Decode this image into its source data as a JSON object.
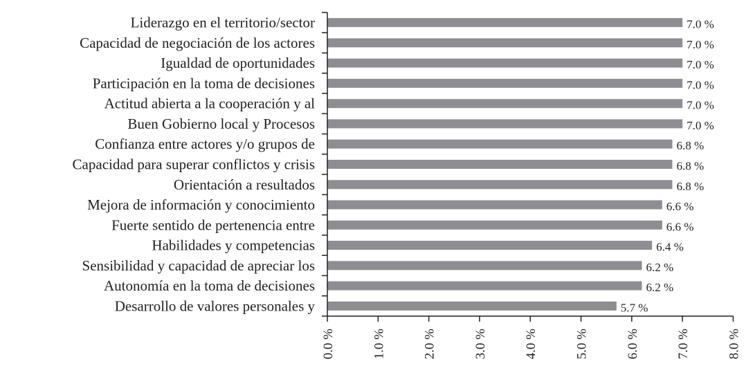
{
  "chart_data": {
    "type": "bar",
    "orientation": "horizontal",
    "title": "",
    "xlabel": "",
    "ylabel": "",
    "categories": [
      "Liderazgo en el territorio/sector",
      "Capacidad de negociación de los actores",
      "Igualdad de oportunidades",
      "Participación en la toma de decisiones",
      "Actitud abierta a la cooperación y al",
      "Buen Gobierno local y Procesos",
      "Confianza entre actores y/o grupos de",
      "Capacidad para superar conflictos y crisis",
      "Orientación a resultados",
      "Mejora de información y conocimiento",
      "Fuerte sentido de pertenencia entre",
      "Habilidades y competencias",
      "Sensibilidad y capacidad de apreciar los",
      "Autonomía en la toma de decisiones",
      "Desarrollo de valores personales y"
    ],
    "values": [
      7.0,
      7.0,
      7.0,
      7.0,
      7.0,
      7.0,
      6.8,
      6.8,
      6.8,
      6.6,
      6.6,
      6.4,
      6.2,
      6.2,
      5.7
    ],
    "value_labels": [
      "7.0 %",
      "7.0 %",
      "7.0 %",
      "7.0 %",
      "7.0 %",
      "7.0 %",
      "6.8 %",
      "6.8 %",
      "6.8 %",
      "6.6 %",
      "6.6 %",
      "6.4 %",
      "6.2 %",
      "6.2 %",
      "5.7 %"
    ],
    "xlim": [
      0,
      8
    ],
    "xticks": [
      0,
      1,
      2,
      3,
      4,
      5,
      6,
      7,
      8
    ],
    "xtick_labels": [
      "0.0 %",
      "1.0 %",
      "2.0 %",
      "3.0 %",
      "4.0 %",
      "5.0 %",
      "6.0 %",
      "7.0 %",
      "8.0 %"
    ],
    "grid": false,
    "legend": "none",
    "bar_color": "#8e8e92"
  }
}
